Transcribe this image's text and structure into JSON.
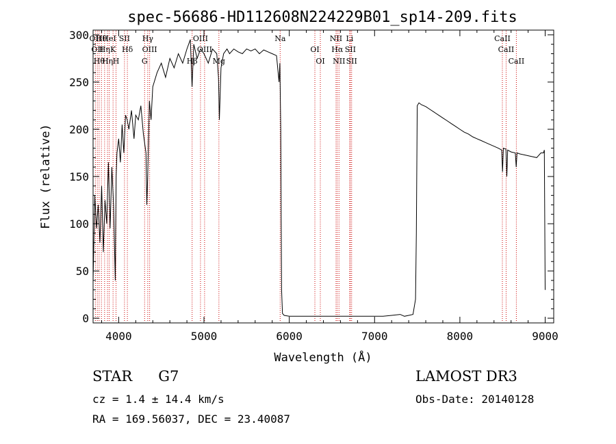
{
  "chart_data": {
    "type": "line",
    "title": "spec-56686-HD112608N224229B01_sp14-209.fits",
    "xlabel": "Wavelength (Å)",
    "ylabel": "Flux (relative)",
    "xlim": [
      3700,
      9100
    ],
    "ylim": [
      -5,
      305
    ],
    "xticks": [
      4000,
      5000,
      6000,
      7000,
      8000,
      9000
    ],
    "yticks": [
      0,
      50,
      100,
      150,
      200,
      250,
      300
    ],
    "series": [
      {
        "name": "flux",
        "x": [
          3700,
          3720,
          3740,
          3760,
          3780,
          3800,
          3820,
          3840,
          3860,
          3880,
          3900,
          3920,
          3940,
          3960,
          3970,
          3980,
          4000,
          4020,
          4040,
          4060,
          4080,
          4100,
          4120,
          4150,
          4180,
          4200,
          4230,
          4260,
          4290,
          4320,
          4330,
          4340,
          4360,
          4380,
          4400,
          4450,
          4500,
          4550,
          4600,
          4650,
          4700,
          4750,
          4800,
          4840,
          4860,
          4880,
          4920,
          4960,
          5000,
          5050,
          5100,
          5150,
          5170,
          5180,
          5200,
          5230,
          5270,
          5300,
          5350,
          5400,
          5450,
          5500,
          5550,
          5600,
          5650,
          5700,
          5750,
          5800,
          5850,
          5880,
          5890,
          5900,
          5910,
          5920,
          5940,
          6000,
          6200,
          6500,
          6800,
          7000,
          7100,
          7200,
          7300,
          7350,
          7400,
          7450,
          7480,
          7490,
          7500,
          7520,
          7550,
          7600,
          7650,
          7700,
          7750,
          7800,
          7850,
          7900,
          7950,
          8000,
          8050,
          8100,
          8150,
          8200,
          8250,
          8300,
          8350,
          8400,
          8450,
          8490,
          8500,
          8510,
          8540,
          8550,
          8560,
          8600,
          8650,
          8660,
          8670,
          8700,
          8750,
          8800,
          8850,
          8900,
          8950,
          8980,
          8990,
          9000
        ],
        "y": [
          40,
          130,
          95,
          120,
          80,
          140,
          70,
          125,
          100,
          165,
          95,
          160,
          120,
          40,
          150,
          175,
          190,
          165,
          205,
          175,
          215,
          210,
          200,
          220,
          190,
          215,
          210,
          225,
          195,
          175,
          120,
          150,
          230,
          210,
          245,
          260,
          270,
          255,
          275,
          265,
          280,
          270,
          285,
          295,
          245,
          290,
          275,
          285,
          280,
          270,
          285,
          280,
          255,
          210,
          265,
          280,
          285,
          280,
          285,
          282,
          280,
          285,
          283,
          285,
          280,
          284,
          282,
          280,
          278,
          250,
          270,
          200,
          30,
          5,
          3,
          2,
          2,
          2,
          2,
          2,
          2,
          3,
          4,
          2,
          3,
          4,
          20,
          90,
          225,
          228,
          226,
          224,
          221,
          218,
          215,
          212,
          209,
          206,
          203,
          200,
          197,
          195,
          192,
          190,
          188,
          186,
          184,
          182,
          180,
          178,
          155,
          180,
          179,
          150,
          178,
          176,
          175,
          160,
          175,
          174,
          173,
          172,
          171,
          170,
          175,
          175,
          178,
          30
        ]
      }
    ],
    "line_markers": [
      {
        "w": 3727,
        "label": "OII"
      },
      {
        "w": 3750,
        "label": "OII"
      },
      {
        "w": 3771,
        "label": "Hθ"
      },
      {
        "w": 3798,
        "label": "Hθ"
      },
      {
        "w": 3835,
        "label": "Hη"
      },
      {
        "w": 3869,
        "label": "Hη"
      },
      {
        "w": 3889,
        "label": "HeI"
      },
      {
        "w": 3934,
        "label": "K"
      },
      {
        "w": 3969,
        "label": "H"
      },
      {
        "w": 4068,
        "label": "SII"
      },
      {
        "w": 4102,
        "label": "Hδ"
      },
      {
        "w": 4304,
        "label": "G"
      },
      {
        "w": 4341,
        "label": "Hγ"
      },
      {
        "w": 4363,
        "label": "OIII"
      },
      {
        "w": 4861,
        "label": "Hβ"
      },
      {
        "w": 4959,
        "label": "OIII"
      },
      {
        "w": 5007,
        "label": "OIII"
      },
      {
        "w": 5175,
        "label": "Mg"
      },
      {
        "w": 5893,
        "label": "Na"
      },
      {
        "w": 6300,
        "label": "OI"
      },
      {
        "w": 6364,
        "label": "OI"
      },
      {
        "w": 6548,
        "label": "NII"
      },
      {
        "w": 6563,
        "label": "Hα"
      },
      {
        "w": 6583,
        "label": "NII"
      },
      {
        "w": 6708,
        "label": "Li"
      },
      {
        "w": 6716,
        "label": "SII"
      },
      {
        "w": 6731,
        "label": "SII"
      },
      {
        "w": 8498,
        "label": "CaII"
      },
      {
        "w": 8542,
        "label": "CaII"
      },
      {
        "w": 8662,
        "label": "CaII"
      }
    ]
  },
  "info": {
    "object_type": "STAR",
    "subclass": "G7",
    "survey": "LAMOST DR3",
    "cz": "cz = 1.4 ± 14.4 km/s",
    "obs_date": "Obs-Date: 20140128",
    "coords": "RA = 169.56037, DEC =  23.40087"
  },
  "colors": {
    "line": "#000000",
    "marker": "#cc0000",
    "background": "#ffffff"
  }
}
